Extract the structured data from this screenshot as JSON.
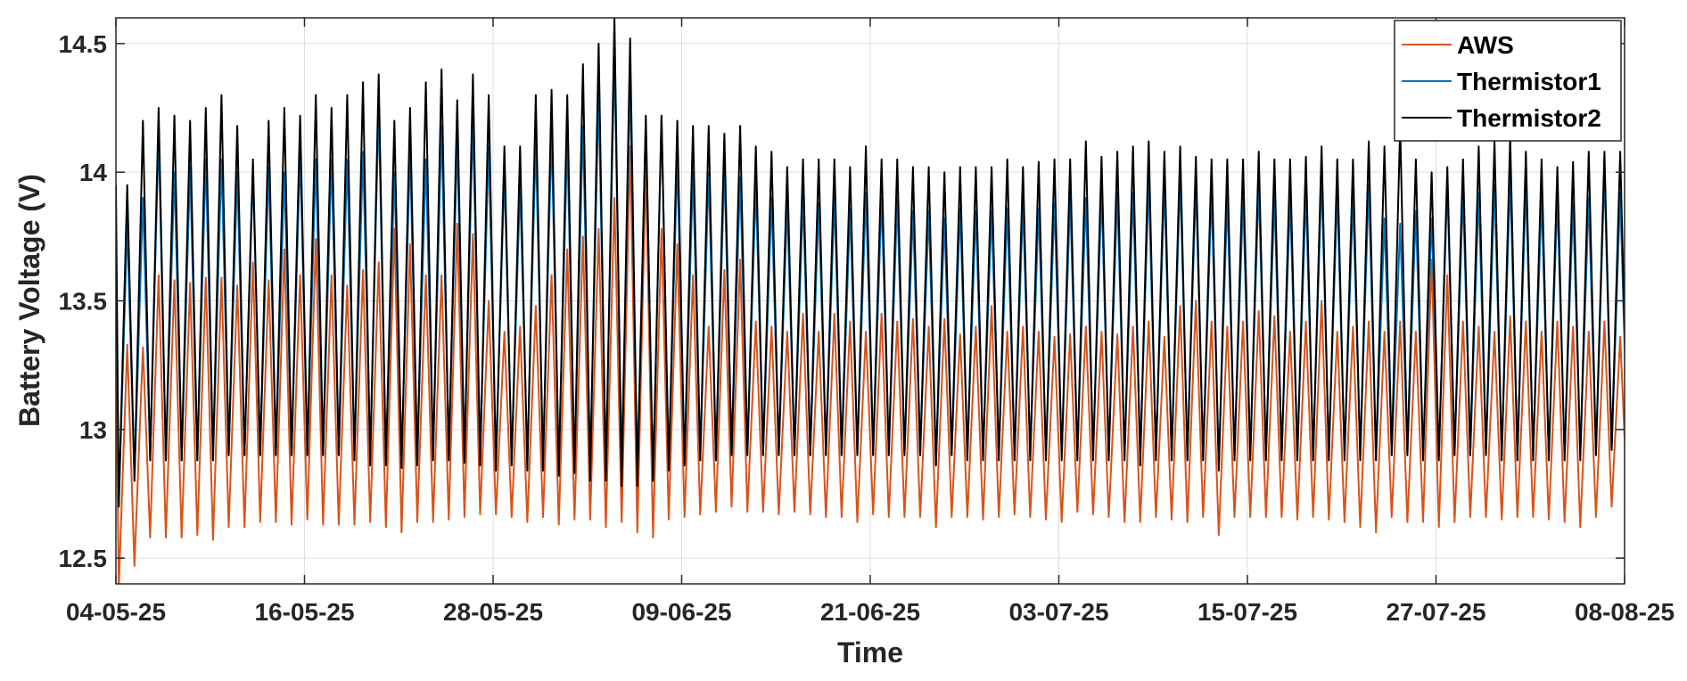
{
  "chart_data": {
    "type": "line",
    "title": "",
    "xlabel": "Time",
    "ylabel": "Battery Voltage (V)",
    "x_range": [
      "2025-05-04",
      "2025-08-08"
    ],
    "ylim": [
      12.4,
      14.6
    ],
    "grid": true,
    "legend_position": "top-right",
    "x_ticks": [
      {
        "date": "2025-05-04",
        "label": "04-05-25"
      },
      {
        "date": "2025-05-16",
        "label": "16-05-25"
      },
      {
        "date": "2025-05-28",
        "label": "28-05-25"
      },
      {
        "date": "2025-06-09",
        "label": "09-06-25"
      },
      {
        "date": "2025-06-21",
        "label": "21-06-25"
      },
      {
        "date": "2025-07-03",
        "label": "03-07-25"
      },
      {
        "date": "2025-07-15",
        "label": "15-07-25"
      },
      {
        "date": "2025-07-27",
        "label": "27-07-25"
      },
      {
        "date": "2025-08-08",
        "label": "08-08-25"
      }
    ],
    "y_ticks": [
      {
        "value": 12.5,
        "label": "12.5"
      },
      {
        "value": 13,
        "label": "13"
      },
      {
        "value": 13.5,
        "label": "13.5"
      },
      {
        "value": 14,
        "label": "14"
      },
      {
        "value": 14.5,
        "label": "14.5"
      }
    ],
    "pattern": "one charge/discharge cycle per day",
    "series": [
      {
        "name": "AWS",
        "color": "#D95319",
        "x_start": "2025-05-04",
        "daily_max": [
          13.33,
          13.32,
          13.6,
          13.58,
          13.57,
          13.59,
          13.59,
          13.56,
          13.65,
          13.58,
          13.7,
          13.6,
          13.74,
          13.6,
          13.56,
          13.62,
          13.65,
          13.78,
          13.72,
          13.6,
          13.6,
          13.8,
          13.76,
          13.5,
          13.38,
          13.4,
          13.48,
          13.6,
          13.7,
          13.75,
          13.78,
          13.9,
          14.1,
          14.02,
          13.78,
          13.72,
          13.6,
          13.4,
          13.62,
          13.66,
          13.42,
          13.4,
          13.38,
          13.45,
          13.38,
          13.45,
          13.42,
          13.38,
          13.45,
          13.42,
          13.43,
          13.4,
          13.43,
          13.37,
          13.4,
          13.48,
          13.38,
          13.4,
          13.38,
          13.36,
          13.37,
          13.4,
          13.38,
          13.37,
          13.4,
          13.42,
          13.36,
          13.48,
          13.5,
          13.42,
          13.4,
          13.42,
          13.46,
          13.44,
          13.38,
          13.42,
          13.5,
          13.38,
          13.4,
          13.42,
          13.38,
          13.42,
          13.38,
          13.66,
          13.6,
          13.42,
          13.4,
          13.38,
          13.44,
          13.42,
          13.38,
          13.42,
          13.4,
          13.38,
          13.42,
          13.36,
          13.4
        ],
        "daily_min": [
          12.38,
          12.47,
          12.58,
          12.58,
          12.58,
          12.59,
          12.57,
          12.62,
          12.62,
          12.64,
          12.64,
          12.63,
          12.65,
          12.63,
          12.63,
          12.63,
          12.64,
          12.62,
          12.6,
          12.64,
          12.64,
          12.65,
          12.66,
          12.67,
          12.67,
          12.66,
          12.64,
          12.66,
          12.63,
          12.65,
          12.65,
          12.62,
          12.64,
          12.6,
          12.58,
          12.65,
          12.66,
          12.67,
          12.68,
          12.7,
          12.68,
          12.68,
          12.67,
          12.68,
          12.67,
          12.66,
          12.66,
          12.64,
          12.67,
          12.66,
          12.66,
          12.66,
          12.62,
          12.66,
          12.66,
          12.65,
          12.66,
          12.67,
          12.66,
          12.65,
          12.64,
          12.68,
          12.67,
          12.66,
          12.64,
          12.64,
          12.66,
          12.65,
          12.64,
          12.66,
          12.59,
          12.66,
          12.66,
          12.66,
          12.66,
          12.65,
          12.66,
          12.65,
          12.64,
          12.62,
          12.6,
          12.66,
          12.64,
          12.64,
          12.62,
          12.64,
          12.66,
          12.66,
          12.65,
          12.66,
          12.66,
          12.65,
          12.64,
          12.62,
          12.66,
          12.7,
          12.71
        ]
      },
      {
        "name": "Thermistor1",
        "color": "#0072BD",
        "x_start": "2025-05-04",
        "daily_max": [
          13.8,
          13.9,
          14.15,
          14.0,
          14.02,
          14.05,
          14.05,
          14.0,
          14.0,
          14.02,
          14.0,
          14.08,
          14.05,
          14.05,
          14.05,
          14.08,
          14.25,
          14.0,
          14.08,
          14.05,
          14.18,
          14.12,
          14.2,
          14.1,
          14.0,
          13.95,
          14.12,
          14.15,
          14.12,
          14.18,
          14.3,
          14.45,
          14.35,
          14.2,
          14.22,
          14.05,
          14.0,
          14.0,
          14.02,
          13.98,
          13.95,
          13.9,
          13.88,
          13.9,
          13.88,
          13.9,
          13.86,
          13.92,
          13.9,
          13.9,
          13.85,
          13.85,
          13.82,
          13.86,
          13.85,
          13.85,
          13.86,
          13.88,
          13.86,
          13.88,
          13.9,
          13.9,
          13.92,
          13.92,
          13.92,
          13.96,
          13.95,
          13.98,
          13.95,
          13.92,
          13.9,
          13.9,
          13.95,
          13.9,
          13.9,
          13.92,
          13.98,
          13.92,
          13.9,
          13.95,
          13.82,
          13.8,
          13.85,
          13.82,
          13.95,
          13.92,
          13.92,
          13.95,
          13.98,
          13.95,
          13.9,
          13.9,
          13.88,
          13.9,
          14.0,
          13.92,
          13.88
        ],
        "daily_min": [
          12.7,
          12.8,
          12.88,
          12.88,
          12.88,
          12.88,
          12.88,
          12.9,
          12.9,
          12.9,
          12.9,
          12.9,
          12.9,
          12.9,
          12.9,
          12.9,
          12.9,
          12.88,
          12.88,
          12.88,
          12.9,
          12.9,
          12.9,
          12.9,
          12.88,
          12.88,
          12.88,
          12.88,
          12.86,
          12.86,
          12.86,
          12.85,
          12.86,
          12.84,
          12.8,
          12.86,
          12.86,
          12.88,
          12.88,
          12.9,
          12.9,
          12.9,
          12.9,
          12.9,
          12.9,
          12.9,
          12.9,
          12.9,
          12.9,
          12.9,
          12.9,
          12.9,
          12.86,
          12.9,
          12.9,
          12.9,
          12.9,
          12.9,
          12.9,
          12.9,
          12.9,
          12.9,
          12.9,
          12.9,
          12.9,
          12.9,
          12.9,
          12.9,
          12.9,
          12.9,
          12.86,
          12.9,
          12.9,
          12.9,
          12.9,
          12.9,
          12.9,
          12.9,
          12.9,
          12.9,
          12.88,
          12.9,
          12.9,
          12.9,
          12.9,
          12.9,
          12.9,
          12.9,
          12.9,
          12.9,
          12.9,
          12.9,
          12.9,
          12.9,
          12.9,
          12.92,
          12.93
        ]
      },
      {
        "name": "Thermistor2",
        "color": "#000000",
        "x_start": "2025-05-04",
        "daily_max": [
          13.95,
          14.2,
          14.25,
          14.22,
          14.2,
          14.25,
          14.3,
          14.18,
          14.05,
          14.2,
          14.25,
          14.22,
          14.3,
          14.25,
          14.3,
          14.35,
          14.38,
          14.2,
          14.25,
          14.35,
          14.4,
          14.28,
          14.38,
          14.3,
          14.1,
          14.1,
          14.3,
          14.32,
          14.3,
          14.42,
          14.5,
          14.6,
          14.52,
          14.22,
          14.22,
          14.2,
          14.18,
          14.18,
          14.15,
          14.18,
          14.1,
          14.08,
          14.02,
          14.05,
          14.05,
          14.05,
          14.02,
          14.1,
          14.05,
          14.05,
          14.02,
          14.02,
          14.0,
          14.02,
          14.02,
          14.02,
          14.05,
          14.02,
          14.04,
          14.05,
          14.05,
          14.12,
          14.06,
          14.08,
          14.1,
          14.12,
          14.08,
          14.1,
          14.06,
          14.05,
          14.05,
          14.05,
          14.08,
          14.05,
          14.05,
          14.06,
          14.1,
          14.05,
          14.05,
          14.12,
          14.1,
          14.18,
          14.05,
          14.0,
          14.02,
          14.05,
          14.1,
          14.12,
          14.14,
          14.08,
          14.05,
          14.02,
          14.04,
          14.08,
          14.08,
          14.08,
          14.08
        ],
        "daily_min": [
          12.7,
          12.8,
          12.88,
          12.88,
          12.88,
          12.88,
          12.88,
          12.9,
          12.9,
          12.9,
          12.9,
          12.9,
          12.9,
          12.9,
          12.9,
          12.88,
          12.86,
          12.86,
          12.85,
          12.86,
          12.88,
          12.88,
          12.87,
          12.86,
          12.84,
          12.86,
          12.84,
          12.84,
          12.82,
          12.83,
          12.8,
          12.8,
          12.78,
          12.78,
          12.8,
          12.84,
          12.86,
          12.88,
          12.88,
          12.9,
          12.9,
          12.9,
          12.9,
          12.9,
          12.9,
          12.9,
          12.9,
          12.9,
          12.9,
          12.9,
          12.9,
          12.9,
          12.86,
          12.9,
          12.88,
          12.88,
          12.88,
          12.88,
          12.88,
          12.88,
          12.88,
          12.88,
          12.88,
          12.88,
          12.88,
          12.86,
          12.88,
          12.88,
          12.88,
          12.88,
          12.84,
          12.88,
          12.88,
          12.88,
          12.88,
          12.88,
          12.88,
          12.88,
          12.88,
          12.88,
          12.88,
          12.9,
          12.9,
          12.88,
          12.88,
          12.9,
          12.9,
          12.9,
          12.88,
          12.88,
          12.88,
          12.88,
          12.88,
          12.88,
          12.9,
          12.92,
          12.93
        ]
      }
    ]
  }
}
